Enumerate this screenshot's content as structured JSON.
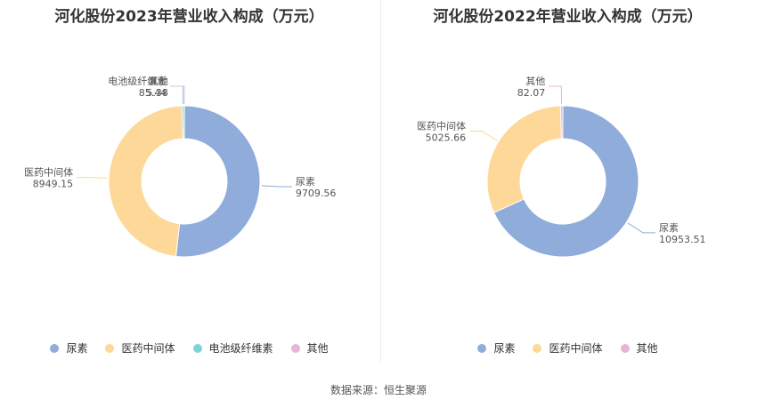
{
  "chart_data": [
    {
      "type": "pie",
      "title": "河化股份2023年营业收入构成（万元）",
      "slices": [
        {
          "name": "尿素",
          "value": 9709.56,
          "value_label": "9709.56",
          "color": "#8facdb"
        },
        {
          "name": "医药中间体",
          "value": 8949.15,
          "value_label": "8949.15",
          "color": "#fdd898"
        },
        {
          "name": "电池级纤维素",
          "value": 85.44,
          "value_label": "85.44",
          "color": "#7fd4db"
        },
        {
          "name": "其他",
          "value": 5.38,
          "value_label": "5.38",
          "color": "#e8b4d8"
        }
      ],
      "legend": [
        "尿素",
        "医药中间体",
        "电池级纤维素",
        "其他"
      ],
      "legend_position": "bottom"
    },
    {
      "type": "pie",
      "title": "河化股份2022年营业收入构成（万元）",
      "slices": [
        {
          "name": "尿素",
          "value": 10953.51,
          "value_label": "10953.51",
          "color": "#8facdb"
        },
        {
          "name": "医药中间体",
          "value": 5025.66,
          "value_label": "5025.66",
          "color": "#fdd898"
        },
        {
          "name": "其他",
          "value": 82.07,
          "value_label": "82.07",
          "color": "#e8b4d8"
        }
      ],
      "legend": [
        "尿素",
        "医药中间体",
        "其他"
      ],
      "legend_position": "bottom"
    }
  ],
  "footer": "数据来源：恒生聚源"
}
